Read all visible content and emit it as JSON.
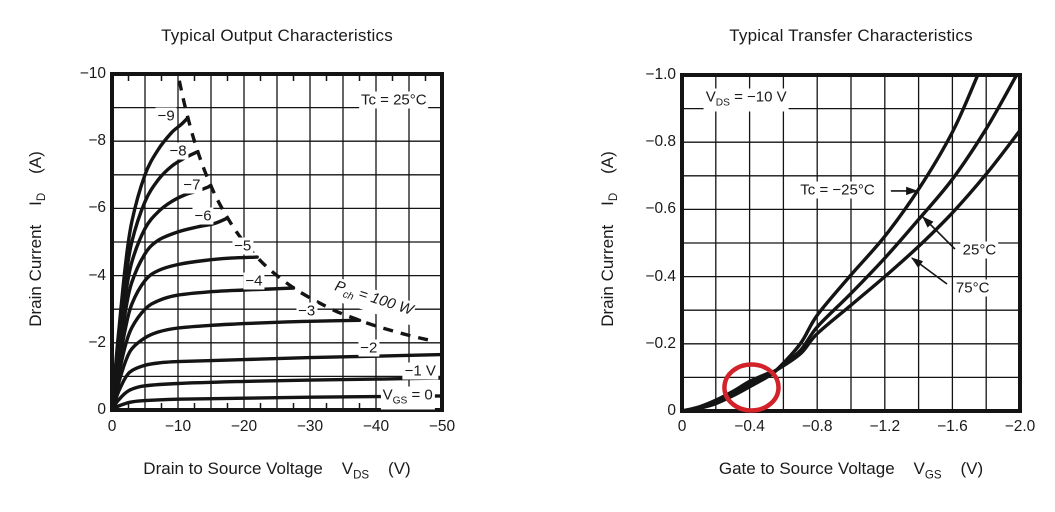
{
  "page": {
    "background": "#ffffff",
    "ink": "#141414",
    "highlight_red": "#d2232a"
  },
  "chart_data": [
    {
      "id": "output-characteristics",
      "type": "line",
      "title": "Typical Output Characteristics",
      "xlabel_rich": "Drain to Source Voltage    V_{DS}    (V)",
      "ylabel_rich": "Drain Current    I_{D}    (A)",
      "note": {
        "text": "Tc = 25°C",
        "v": 42.7,
        "i": 9.22
      },
      "x_axis": {
        "range": [
          0,
          -50
        ],
        "gridline_step": 5,
        "minor_tick_step": 2.5,
        "ticks": [
          {
            "value": 0,
            "label": "0"
          },
          {
            "value": 10,
            "label": "−10"
          },
          {
            "value": 20,
            "label": "−20"
          },
          {
            "value": 30,
            "label": "−30"
          },
          {
            "value": 40,
            "label": "−40"
          },
          {
            "value": 50,
            "label": "−50"
          }
        ]
      },
      "y_axis": {
        "range": [
          0,
          -10
        ],
        "gridline_step": 1,
        "minor_tick_step": null,
        "ticks": [
          {
            "value": 0,
            "label": "0"
          },
          {
            "value": 2,
            "label": "−2"
          },
          {
            "value": 4,
            "label": "−4"
          },
          {
            "value": 6,
            "label": "−6"
          },
          {
            "value": 8,
            "label": "−8"
          },
          {
            "value": 10,
            "label": "−10"
          }
        ]
      },
      "series": [
        {
          "name": "VGS = 0 V",
          "label": "V_{GS} = 0",
          "label_at": {
            "v": 44.8,
            "i": 0.37
          },
          "points": [
            [
              0,
              0
            ],
            [
              0.5,
              0.07
            ],
            [
              1,
              0.12
            ],
            [
              2,
              0.19
            ],
            [
              3,
              0.24
            ],
            [
              5,
              0.28
            ],
            [
              10,
              0.32
            ],
            [
              20,
              0.35
            ],
            [
              30,
              0.38
            ],
            [
              40,
              0.4
            ],
            [
              50,
              0.42
            ]
          ]
        },
        {
          "name": "VGS = -1 V",
          "label": "−1 V",
          "label_at": {
            "v": 46.7,
            "i": 1.16
          },
          "points": [
            [
              0,
              0
            ],
            [
              0.5,
              0.17
            ],
            [
              1,
              0.3
            ],
            [
              2,
              0.5
            ],
            [
              3,
              0.62
            ],
            [
              5,
              0.72
            ],
            [
              10,
              0.79
            ],
            [
              20,
              0.85
            ],
            [
              30,
              0.89
            ],
            [
              40,
              0.92
            ],
            [
              50,
              0.95
            ]
          ]
        },
        {
          "name": "VGS = -2 V",
          "label": "−2",
          "label_at": {
            "v": 38.9,
            "i": 1.85
          },
          "points": [
            [
              0,
              0
            ],
            [
              0.5,
              0.28
            ],
            [
              1,
              0.55
            ],
            [
              2,
              0.95
            ],
            [
              3,
              1.17
            ],
            [
              5,
              1.33
            ],
            [
              7,
              1.4
            ],
            [
              10,
              1.44
            ],
            [
              20,
              1.5
            ],
            [
              30,
              1.56
            ],
            [
              40,
              1.6
            ],
            [
              50,
              1.65
            ]
          ]
        },
        {
          "name": "VGS = -3 V",
          "label": "−3",
          "label_at": {
            "v": 29.5,
            "i": 2.95
          },
          "points": [
            [
              0,
              0
            ],
            [
              0.5,
              0.4
            ],
            [
              1,
              0.8
            ],
            [
              2,
              1.42
            ],
            [
              3,
              1.82
            ],
            [
              5,
              2.15
            ],
            [
              7,
              2.32
            ],
            [
              10,
              2.44
            ],
            [
              15,
              2.52
            ],
            [
              20,
              2.57
            ],
            [
              25,
              2.61
            ],
            [
              30,
              2.64
            ],
            [
              37.5,
              2.67
            ]
          ]
        },
        {
          "name": "VGS = -4 V",
          "label": "−4",
          "label_at": {
            "v": 21.5,
            "i": 3.84
          },
          "points": [
            [
              0,
              0
            ],
            [
              0.5,
              0.55
            ],
            [
              1,
              1.05
            ],
            [
              2,
              1.9
            ],
            [
              3,
              2.45
            ],
            [
              5,
              3.0
            ],
            [
              7,
              3.25
            ],
            [
              10,
              3.42
            ],
            [
              15,
              3.52
            ],
            [
              20,
              3.57
            ],
            [
              24,
              3.6
            ],
            [
              27.5,
              3.63
            ]
          ]
        },
        {
          "name": "VGS = -5 V",
          "label": "−5",
          "label_at": {
            "v": 19.8,
            "i": 4.88
          },
          "points": [
            [
              0,
              0
            ],
            [
              0.5,
              0.65
            ],
            [
              1,
              1.3
            ],
            [
              2,
              2.4
            ],
            [
              3,
              3.15
            ],
            [
              5,
              3.85
            ],
            [
              7,
              4.15
            ],
            [
              10,
              4.33
            ],
            [
              14,
              4.45
            ],
            [
              18,
              4.52
            ],
            [
              22,
              4.55
            ]
          ]
        },
        {
          "name": "VGS = -6 V",
          "label": "−6",
          "label_at": {
            "v": 13.8,
            "i": 5.77
          },
          "points": [
            [
              0,
              0
            ],
            [
              0.5,
              0.8
            ],
            [
              1,
              1.55
            ],
            [
              2,
              2.9
            ],
            [
              3,
              3.8
            ],
            [
              5,
              4.65
            ],
            [
              7,
              5.05
            ],
            [
              10,
              5.3
            ],
            [
              13,
              5.45
            ],
            [
              15.5,
              5.55
            ],
            [
              17.5,
              5.71
            ]
          ]
        },
        {
          "name": "VGS = -7 V",
          "label": "−7",
          "label_at": {
            "v": 12.1,
            "i": 6.7
          },
          "points": [
            [
              0,
              0
            ],
            [
              0.5,
              0.95
            ],
            [
              1,
              1.8
            ],
            [
              2,
              3.35
            ],
            [
              3,
              4.4
            ],
            [
              5,
              5.4
            ],
            [
              7,
              5.9
            ],
            [
              9,
              6.2
            ],
            [
              11,
              6.4
            ],
            [
              13,
              6.52
            ],
            [
              15,
              6.67
            ]
          ]
        },
        {
          "name": "VGS = -8 V",
          "label": "−8",
          "label_at": {
            "v": 10.0,
            "i": 7.71
          },
          "points": [
            [
              0,
              0
            ],
            [
              0.5,
              1.05
            ],
            [
              1,
              2.05
            ],
            [
              2,
              3.8
            ],
            [
              3,
              5.0
            ],
            [
              5,
              6.2
            ],
            [
              7,
              6.85
            ],
            [
              9,
              7.25
            ],
            [
              11,
              7.5
            ],
            [
              13,
              7.69
            ]
          ]
        },
        {
          "name": "VGS = -9 V",
          "label": "−9",
          "label_at": {
            "v": 8.2,
            "i": 8.75
          },
          "points": [
            [
              0,
              0
            ],
            [
              0.5,
              1.2
            ],
            [
              1,
              2.3
            ],
            [
              2,
              4.25
            ],
            [
              3,
              5.6
            ],
            [
              5,
              7.0
            ],
            [
              7,
              7.75
            ],
            [
              9,
              8.25
            ],
            [
              10.5,
              8.5
            ],
            [
              11.5,
              8.7
            ]
          ]
        }
      ],
      "power_limit": {
        "label": "P_{ch} = 100 W",
        "label_at": {
          "v": 39.5,
          "i": 3.25
        },
        "label_angle_deg": 18,
        "dashed": true,
        "points": [
          [
            10.2,
            9.8
          ],
          [
            11,
            9.09
          ],
          [
            12,
            8.33
          ],
          [
            13,
            7.69
          ],
          [
            14.3,
            6.99
          ],
          [
            16,
            6.25
          ],
          [
            18,
            5.56
          ],
          [
            20,
            5.0
          ],
          [
            22.5,
            4.44
          ],
          [
            25,
            4.0
          ],
          [
            28.5,
            3.51
          ],
          [
            33.3,
            3.0
          ],
          [
            36,
            2.78
          ],
          [
            40,
            2.5
          ],
          [
            45,
            2.22
          ],
          [
            49,
            2.04
          ]
        ]
      }
    },
    {
      "id": "transfer-characteristics",
      "type": "line",
      "title": "Typical Transfer Characteristics",
      "xlabel_rich": "Gate to Source Voltage    V_{GS}    (V)",
      "ylabel_rich": "Drain Current    I_{D}    (A)",
      "note": {
        "text": "V_{DS} = −10 V",
        "v": 0.38,
        "i": 0.925
      },
      "x_axis": {
        "range": [
          0,
          -2
        ],
        "gridline_step": 0.2,
        "minor_tick_step": null,
        "ticks": [
          {
            "value": 0,
            "label": "0"
          },
          {
            "value": 0.4,
            "label": "−0.4"
          },
          {
            "value": 0.8,
            "label": "−0.8"
          },
          {
            "value": 1.2,
            "label": "−1.2"
          },
          {
            "value": 1.6,
            "label": "−1.6"
          },
          {
            "value": 2.0,
            "label": "−2.0"
          }
        ]
      },
      "y_axis": {
        "range": [
          0,
          -1
        ],
        "gridline_step": 0.1,
        "minor_tick_step": null,
        "ticks": [
          {
            "value": 0,
            "label": "0"
          },
          {
            "value": 0.2,
            "label": "−0.2"
          },
          {
            "value": 0.4,
            "label": "−0.4"
          },
          {
            "value": 0.6,
            "label": "−0.6"
          },
          {
            "value": 0.8,
            "label": "−0.8"
          },
          {
            "value": 1.0,
            "label": "−1.0"
          }
        ]
      },
      "series": [
        {
          "name": "Tc = -25°C",
          "points": [
            [
              0,
              0
            ],
            [
              0.1,
              0.008
            ],
            [
              0.2,
              0.022
            ],
            [
              0.3,
              0.045
            ],
            [
              0.4,
              0.072
            ],
            [
              0.5,
              0.1
            ],
            [
              0.56,
              0.122
            ],
            [
              0.7,
              0.2
            ],
            [
              0.8,
              0.285
            ],
            [
              1.0,
              0.405
            ],
            [
              1.2,
              0.52
            ],
            [
              1.4,
              0.66
            ],
            [
              1.6,
              0.83
            ],
            [
              1.75,
              1.0
            ]
          ]
        },
        {
          "name": "25°C",
          "points": [
            [
              0,
              0
            ],
            [
              0.1,
              0.01
            ],
            [
              0.2,
              0.027
            ],
            [
              0.3,
              0.052
            ],
            [
              0.4,
              0.08
            ],
            [
              0.5,
              0.106
            ],
            [
              0.56,
              0.122
            ],
            [
              0.7,
              0.18
            ],
            [
              0.8,
              0.25
            ],
            [
              1.0,
              0.35
            ],
            [
              1.2,
              0.455
            ],
            [
              1.4,
              0.57
            ],
            [
              1.6,
              0.69
            ],
            [
              1.8,
              0.84
            ],
            [
              1.98,
              1.0
            ]
          ]
        },
        {
          "name": "75°C",
          "points": [
            [
              0,
              0
            ],
            [
              0.1,
              0.012
            ],
            [
              0.2,
              0.032
            ],
            [
              0.3,
              0.058
            ],
            [
              0.4,
              0.088
            ],
            [
              0.5,
              0.11
            ],
            [
              0.56,
              0.122
            ],
            [
              0.7,
              0.17
            ],
            [
              0.8,
              0.23
            ],
            [
              1.0,
              0.315
            ],
            [
              1.2,
              0.4
            ],
            [
              1.4,
              0.49
            ],
            [
              1.6,
              0.59
            ],
            [
              1.8,
              0.705
            ],
            [
              2.0,
              0.835
            ]
          ]
        }
      ],
      "callouts": [
        {
          "text": "Tc = −25°C",
          "text_at": {
            "v": 0.92,
            "i": 0.657
          },
          "arrow_from": {
            "v": 1.236,
            "i": 0.655
          },
          "arrow_to": {
            "v": 1.39,
            "i": 0.655
          }
        },
        {
          "text": "25°C",
          "text_at": {
            "v": 1.76,
            "i": 0.48
          },
          "arrow_from": {
            "v": 1.615,
            "i": 0.482
          },
          "arrow_to": {
            "v": 1.426,
            "i": 0.577
          }
        },
        {
          "text": "75°C",
          "text_at": {
            "v": 1.72,
            "i": 0.365
          },
          "arrow_from": {
            "v": 1.568,
            "i": 0.378
          },
          "arrow_to": {
            "v": 1.361,
            "i": 0.455
          }
        }
      ],
      "highlight_ellipse": {
        "center": {
          "v": 0.411,
          "i": 0.07
        },
        "rv": 0.16,
        "ri": 0.0685,
        "color": "#d2232a"
      }
    }
  ]
}
